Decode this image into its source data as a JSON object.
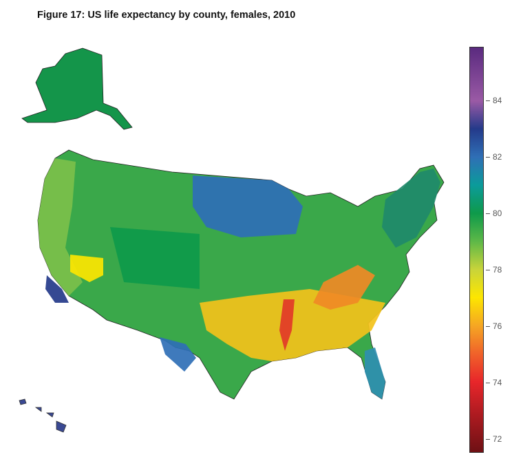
{
  "title": "Figure 17: US life expectancy by county, females, 2010",
  "colorbar": {
    "min": 71.5,
    "max": 85.9,
    "ticks": [
      84,
      82,
      80,
      78,
      76,
      74,
      72
    ],
    "stops": [
      {
        "value": 71.5,
        "color": "#6e1014"
      },
      {
        "value": 73,
        "color": "#b51c22"
      },
      {
        "value": 74,
        "color": "#e8262a"
      },
      {
        "value": 75,
        "color": "#f0622a"
      },
      {
        "value": 76,
        "color": "#f5a623"
      },
      {
        "value": 77,
        "color": "#fde600"
      },
      {
        "value": 78,
        "color": "#c9d43a"
      },
      {
        "value": 79,
        "color": "#5db848"
      },
      {
        "value": 80,
        "color": "#0e9a4a"
      },
      {
        "value": 81,
        "color": "#0b9b9b"
      },
      {
        "value": 82,
        "color": "#2f6fb6"
      },
      {
        "value": 83,
        "color": "#243a8a"
      },
      {
        "value": 84,
        "color": "#9a5aa5"
      },
      {
        "value": 85.9,
        "color": "#5a2a7f"
      }
    ]
  },
  "regions": [
    {
      "name": "alaska",
      "color": "#14954a"
    },
    {
      "name": "hawaii",
      "color": "#2a3a8a"
    },
    {
      "name": "contiguous-us",
      "color": "#3aa84a"
    },
    {
      "name": "west-coast",
      "color": "#7cc04a"
    },
    {
      "name": "northern-plains",
      "color": "#2f6fb6"
    },
    {
      "name": "colorado-utah",
      "color": "#0e9a4a"
    },
    {
      "name": "south",
      "color": "#f3c21a"
    },
    {
      "name": "appalachia",
      "color": "#f08a25"
    },
    {
      "name": "mississippi-delta",
      "color": "#e23a28"
    },
    {
      "name": "nevada",
      "color": "#fde600"
    },
    {
      "name": "florida",
      "color": "#2f8fb0"
    },
    {
      "name": "northeast",
      "color": "#1f8a6a"
    },
    {
      "name": "texas-west",
      "color": "#2f6fb6"
    },
    {
      "name": "southern-california",
      "color": "#243a8a"
    }
  ]
}
